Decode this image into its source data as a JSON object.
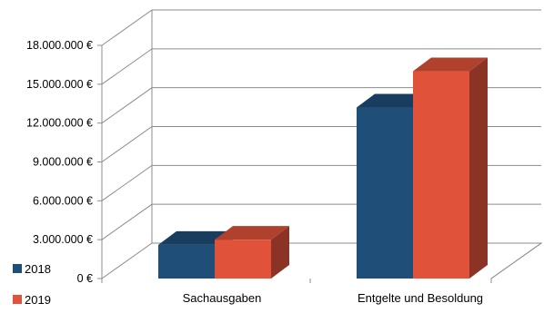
{
  "chart_data": {
    "type": "bar",
    "title": "",
    "xlabel": "",
    "ylabel": "",
    "categories": [
      "Sachausgaben",
      "Entgelte und Besoldung"
    ],
    "series": [
      {
        "name": "2018",
        "values": [
          2600000,
          13200000
        ]
      },
      {
        "name": "2019",
        "values": [
          3000000,
          16000000
        ]
      }
    ],
    "ylim": [
      0,
      18000000
    ],
    "yticks": [
      0,
      3000000,
      6000000,
      9000000,
      12000000,
      15000000,
      18000000
    ],
    "ytick_labels": [
      "0 €",
      "3.000.000 €",
      "6.000.000 €",
      "9.000.000 €",
      "12.000.000 €",
      "15.000.000 €",
      "18.000.000 €"
    ],
    "grid": true,
    "style_3d": true,
    "legend_position": "bottom-left",
    "colors": {
      "2018": "#1f4e79",
      "2019": "#e0533a"
    }
  }
}
